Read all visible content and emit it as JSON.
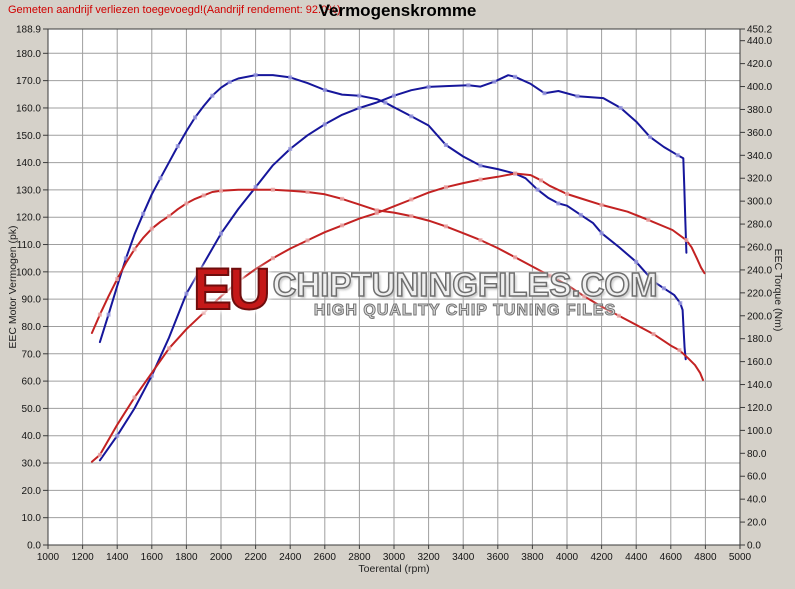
{
  "header": {
    "note": "Gemeten aandrijf verliezen toegevoegd!(Aandrijf rendement: 92.0%)",
    "title": "Vermogenskromme"
  },
  "axes": {
    "left_title": "EEC Motor Vermogen (pk)",
    "right_title": "EEC Torque (Nm)",
    "x_title": "Toerental (rpm)"
  },
  "watermark": {
    "eu": "EU",
    "main": "CHIPTUNINGFILES.COM",
    "sub": "HIGH QUALITY CHIP TUNING FILES"
  },
  "colors": {
    "background": "#d5d1c9",
    "plot_bg": "#ffffff",
    "grid": "#9f9f9f",
    "border": "#3a3a3a",
    "note": "#d00000",
    "tuned": "#16169b",
    "original": "#c32222",
    "tuned_marker": "#9a9ade",
    "original_marker": "#eaa8a8"
  },
  "chart_data": {
    "type": "line",
    "title": "Vermogenskromme",
    "xlabel": "Toerental (rpm)",
    "ylabel_left": "EEC Motor Vermogen (pk)",
    "ylabel_right": "EEC Torque (Nm)",
    "grid": true,
    "legend": "none",
    "x_range": [
      1000,
      5000
    ],
    "left_range": [
      0,
      188.9
    ],
    "right_range": [
      0,
      450.2
    ],
    "x_ticks": [
      1000,
      1200,
      1400,
      1600,
      1800,
      2000,
      2200,
      2400,
      2600,
      2800,
      3000,
      3200,
      3400,
      3600,
      3800,
      4000,
      4200,
      4400,
      4600,
      4800,
      5000
    ],
    "left_ticks": [
      "188.9",
      "180.0",
      "170.0",
      "160.0",
      "150.0",
      "140.0",
      "130.0",
      "120.0",
      "110.0",
      "100.0",
      "90.0",
      "80.0",
      "70.0",
      "60.0",
      "50.0",
      "40.0",
      "30.0",
      "20.0",
      "10.0",
      "0.0"
    ],
    "right_ticks": [
      "450.2",
      "440.0",
      "420.0",
      "400.0",
      "380.0",
      "360.0",
      "340.0",
      "320.0",
      "300.0",
      "280.0",
      "260.0",
      "240.0",
      "220.0",
      "200.0",
      "180.0",
      "160.0",
      "140.0",
      "120.0",
      "100.0",
      "80.0",
      "60.0",
      "40.0",
      "20.0",
      "0.0"
    ],
    "series": [
      {
        "name": "tuned-torque",
        "axis": "right",
        "unit": "Nm",
        "color_key": "tuned",
        "marker_key": "tuned_marker",
        "points": [
          [
            1300,
            177
          ],
          [
            1350,
            201
          ],
          [
            1400,
            226
          ],
          [
            1450,
            250
          ],
          [
            1500,
            271
          ],
          [
            1550,
            289
          ],
          [
            1600,
            306
          ],
          [
            1650,
            320
          ],
          [
            1700,
            334
          ],
          [
            1750,
            348
          ],
          [
            1800,
            361
          ],
          [
            1850,
            373
          ],
          [
            1900,
            383
          ],
          [
            1950,
            392
          ],
          [
            2000,
            399
          ],
          [
            2050,
            404
          ],
          [
            2100,
            407
          ],
          [
            2200,
            410
          ],
          [
            2300,
            410
          ],
          [
            2400,
            408
          ],
          [
            2500,
            403
          ],
          [
            2600,
            397
          ],
          [
            2700,
            393
          ],
          [
            2800,
            392
          ],
          [
            2900,
            389
          ],
          [
            2950,
            386
          ],
          [
            3000,
            382
          ],
          [
            3100,
            374
          ],
          [
            3200,
            366
          ],
          [
            3300,
            349
          ],
          [
            3400,
            339
          ],
          [
            3500,
            331
          ],
          [
            3600,
            328
          ],
          [
            3700,
            324
          ],
          [
            3760,
            320
          ],
          [
            3830,
            310
          ],
          [
            3890,
            303
          ],
          [
            3950,
            298
          ],
          [
            4000,
            296
          ],
          [
            4080,
            288
          ],
          [
            4150,
            281
          ],
          [
            4200,
            272
          ],
          [
            4300,
            260
          ],
          [
            4400,
            247
          ],
          [
            4500,
            230
          ],
          [
            4560,
            224
          ],
          [
            4620,
            218
          ],
          [
            4655,
            211
          ],
          [
            4668,
            205
          ],
          [
            4674,
            188
          ],
          [
            4680,
            172
          ],
          [
            4686,
            162
          ]
        ]
      },
      {
        "name": "tuned-power",
        "axis": "left",
        "unit": "pk",
        "color_key": "tuned",
        "marker_key": "tuned_marker",
        "points": [
          [
            1300,
            31
          ],
          [
            1400,
            40
          ],
          [
            1500,
            50
          ],
          [
            1600,
            62
          ],
          [
            1700,
            76
          ],
          [
            1800,
            92
          ],
          [
            1900,
            103
          ],
          [
            2000,
            114
          ],
          [
            2100,
            123
          ],
          [
            2200,
            131
          ],
          [
            2300,
            139
          ],
          [
            2400,
            145
          ],
          [
            2500,
            150
          ],
          [
            2600,
            154
          ],
          [
            2700,
            157.5
          ],
          [
            2800,
            160
          ],
          [
            2900,
            162
          ],
          [
            3000,
            164.5
          ],
          [
            3100,
            166.5
          ],
          [
            3200,
            167.7
          ],
          [
            3300,
            168
          ],
          [
            3430,
            168.3
          ],
          [
            3500,
            167.8
          ],
          [
            3580,
            169.6
          ],
          [
            3660,
            172
          ],
          [
            3700,
            171.4
          ],
          [
            3790,
            168.8
          ],
          [
            3870,
            165.4
          ],
          [
            3950,
            166.2
          ],
          [
            4060,
            164.3
          ],
          [
            4210,
            163.6
          ],
          [
            4310,
            160
          ],
          [
            4400,
            155
          ],
          [
            4480,
            149.4
          ],
          [
            4560,
            145.7
          ],
          [
            4640,
            142.7
          ],
          [
            4672,
            141.6
          ],
          [
            4678,
            131
          ],
          [
            4684,
            119
          ],
          [
            4690,
            107
          ]
        ]
      },
      {
        "name": "original-torque",
        "axis": "right",
        "unit": "Nm",
        "color_key": "original",
        "marker_key": "original_marker",
        "points": [
          [
            1254,
            185
          ],
          [
            1300,
            201
          ],
          [
            1350,
            217
          ],
          [
            1400,
            232
          ],
          [
            1450,
            246
          ],
          [
            1500,
            258
          ],
          [
            1550,
            268
          ],
          [
            1600,
            276
          ],
          [
            1650,
            282
          ],
          [
            1700,
            287
          ],
          [
            1750,
            293
          ],
          [
            1800,
            298
          ],
          [
            1850,
            302
          ],
          [
            1900,
            305
          ],
          [
            1950,
            308
          ],
          [
            2000,
            309
          ],
          [
            2100,
            310
          ],
          [
            2300,
            310
          ],
          [
            2400,
            309
          ],
          [
            2500,
            308
          ],
          [
            2600,
            306
          ],
          [
            2700,
            302
          ],
          [
            2800,
            297
          ],
          [
            2900,
            292
          ],
          [
            3000,
            290
          ],
          [
            3100,
            287
          ],
          [
            3200,
            283
          ],
          [
            3300,
            278
          ],
          [
            3400,
            272
          ],
          [
            3500,
            266
          ],
          [
            3600,
            259
          ],
          [
            3700,
            251
          ],
          [
            3800,
            243
          ],
          [
            3900,
            235
          ],
          [
            4000,
            227
          ],
          [
            4100,
            217
          ],
          [
            4200,
            208
          ],
          [
            4300,
            200
          ],
          [
            4400,
            192
          ],
          [
            4500,
            184
          ],
          [
            4600,
            174
          ],
          [
            4650,
            170
          ],
          [
            4700,
            163
          ],
          [
            4740,
            157
          ],
          [
            4770,
            150
          ],
          [
            4786,
            144
          ]
        ]
      },
      {
        "name": "original-power",
        "axis": "left",
        "unit": "pk",
        "color_key": "original",
        "marker_key": "original_marker",
        "points": [
          [
            1254,
            30.5
          ],
          [
            1300,
            33
          ],
          [
            1400,
            44
          ],
          [
            1500,
            54
          ],
          [
            1600,
            63
          ],
          [
            1700,
            72
          ],
          [
            1800,
            79
          ],
          [
            1900,
            85
          ],
          [
            2000,
            91
          ],
          [
            2100,
            96.5
          ],
          [
            2200,
            101
          ],
          [
            2300,
            105
          ],
          [
            2400,
            108.5
          ],
          [
            2500,
            111.5
          ],
          [
            2600,
            114.5
          ],
          [
            2700,
            117
          ],
          [
            2800,
            119.5
          ],
          [
            2900,
            121.5
          ],
          [
            3000,
            124
          ],
          [
            3100,
            126.5
          ],
          [
            3200,
            129
          ],
          [
            3300,
            131
          ],
          [
            3400,
            132.5
          ],
          [
            3500,
            133.8
          ],
          [
            3600,
            134.8
          ],
          [
            3700,
            136
          ],
          [
            3790,
            135.4
          ],
          [
            3850,
            133.5
          ],
          [
            3900,
            131.5
          ],
          [
            4000,
            128.5
          ],
          [
            4100,
            126.5
          ],
          [
            4200,
            124.5
          ],
          [
            4350,
            122
          ],
          [
            4470,
            119
          ],
          [
            4610,
            115.3
          ],
          [
            4690,
            111.6
          ],
          [
            4720,
            109
          ],
          [
            4750,
            105
          ],
          [
            4775,
            101.5
          ],
          [
            4795,
            99.5
          ]
        ]
      }
    ]
  }
}
